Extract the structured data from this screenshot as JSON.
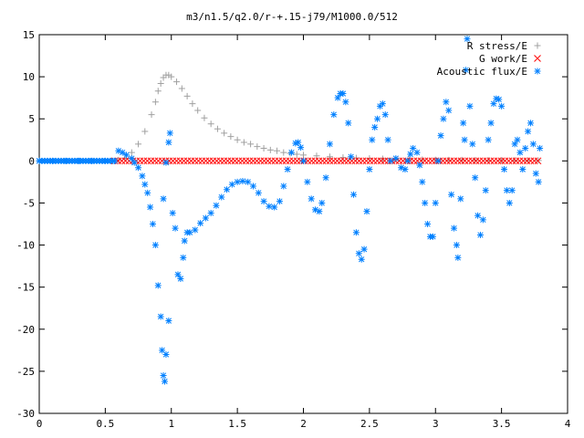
{
  "chart_data": {
    "type": "scatter",
    "title": "m3/n1.5/q2.0/r-+.15-j79/M1000.0/512",
    "xlabel": "",
    "ylabel": "",
    "xlim": [
      0,
      4
    ],
    "ylim": [
      -30,
      15
    ],
    "x_ticks": [
      "0",
      "0.5",
      "1",
      "1.5",
      "2",
      "2.5",
      "3",
      "3.5",
      "4"
    ],
    "y_ticks": [
      "15",
      "10",
      "5",
      "0",
      "-5",
      "-10",
      "-15",
      "-20",
      "-25",
      "-30"
    ],
    "legend_position": "top-right",
    "grid": false,
    "series": [
      {
        "name": "R stress/E",
        "marker": "+",
        "color": "#a0a0a0",
        "points": [
          [
            0.55,
            0.0
          ],
          [
            0.6,
            0.1
          ],
          [
            0.65,
            0.3
          ],
          [
            0.7,
            1.0
          ],
          [
            0.75,
            2.0
          ],
          [
            0.8,
            3.5
          ],
          [
            0.85,
            5.5
          ],
          [
            0.88,
            7.0
          ],
          [
            0.9,
            8.3
          ],
          [
            0.92,
            9.2
          ],
          [
            0.94,
            9.9
          ],
          [
            0.96,
            10.2
          ],
          [
            0.98,
            10.2
          ],
          [
            1.0,
            10.0
          ],
          [
            1.04,
            9.4
          ],
          [
            1.08,
            8.6
          ],
          [
            1.12,
            7.7
          ],
          [
            1.16,
            6.8
          ],
          [
            1.2,
            6.0
          ],
          [
            1.25,
            5.1
          ],
          [
            1.3,
            4.4
          ],
          [
            1.35,
            3.8
          ],
          [
            1.4,
            3.3
          ],
          [
            1.45,
            2.9
          ],
          [
            1.5,
            2.5
          ],
          [
            1.55,
            2.2
          ],
          [
            1.6,
            2.0
          ],
          [
            1.65,
            1.7
          ],
          [
            1.7,
            1.5
          ],
          [
            1.75,
            1.3
          ],
          [
            1.8,
            1.2
          ],
          [
            1.85,
            1.0
          ],
          [
            1.9,
            0.9
          ],
          [
            1.95,
            0.8
          ],
          [
            2.0,
            0.7
          ],
          [
            2.1,
            0.6
          ],
          [
            2.2,
            0.5
          ],
          [
            2.3,
            0.4
          ],
          [
            2.4,
            0.35
          ],
          [
            2.5,
            0.3
          ],
          [
            2.6,
            0.25
          ],
          [
            2.7,
            0.2
          ],
          [
            2.8,
            0.18
          ],
          [
            2.9,
            0.15
          ],
          [
            3.0,
            0.12
          ],
          [
            3.1,
            0.1
          ],
          [
            3.2,
            0.1
          ],
          [
            3.3,
            0.08
          ],
          [
            3.4,
            0.07
          ],
          [
            3.5,
            0.06
          ],
          [
            3.6,
            0.05
          ],
          [
            3.7,
            0.05
          ],
          [
            3.78,
            0.05
          ]
        ]
      },
      {
        "name": "G work/E",
        "marker": "x",
        "color": "#ff0000",
        "x_range": [
          0.57,
          3.79
        ],
        "y_value": 0
      },
      {
        "name": "Acoustic flux/E",
        "marker": "*",
        "color": "#0080ff",
        "points": [
          [
            0.0,
            0
          ],
          [
            0.1,
            0
          ],
          [
            0.2,
            0
          ],
          [
            0.3,
            0
          ],
          [
            0.4,
            0
          ],
          [
            0.5,
            0
          ],
          [
            0.57,
            0
          ],
          [
            0.6,
            1.2
          ],
          [
            0.63,
            1.0
          ],
          [
            0.66,
            0.7
          ],
          [
            0.7,
            0.3
          ],
          [
            0.72,
            -0.2
          ],
          [
            0.75,
            -0.8
          ],
          [
            0.78,
            -1.8
          ],
          [
            0.8,
            -2.8
          ],
          [
            0.82,
            -3.8
          ],
          [
            0.84,
            -5.5
          ],
          [
            0.86,
            -7.5
          ],
          [
            0.88,
            -10.0
          ],
          [
            0.9,
            -14.8
          ],
          [
            0.92,
            -18.5
          ],
          [
            0.93,
            -22.5
          ],
          [
            0.94,
            -25.5
          ],
          [
            0.95,
            -26.2
          ],
          [
            0.96,
            -23.0
          ],
          [
            0.98,
            -19.0
          ],
          [
            0.94,
            -4.5
          ],
          [
            0.96,
            -0.2
          ],
          [
            0.98,
            2.2
          ],
          [
            0.99,
            3.3
          ],
          [
            1.01,
            -6.2
          ],
          [
            1.03,
            -8.0
          ],
          [
            1.05,
            -13.5
          ],
          [
            1.07,
            -14.0
          ],
          [
            1.09,
            -11.5
          ],
          [
            1.1,
            -9.5
          ],
          [
            1.12,
            -8.5
          ],
          [
            1.14,
            -8.5
          ],
          [
            1.18,
            -8.2
          ],
          [
            1.22,
            -7.4
          ],
          [
            1.26,
            -6.8
          ],
          [
            1.3,
            -6.2
          ],
          [
            1.34,
            -5.3
          ],
          [
            1.38,
            -4.3
          ],
          [
            1.42,
            -3.4
          ],
          [
            1.46,
            -2.8
          ],
          [
            1.5,
            -2.5
          ],
          [
            1.54,
            -2.4
          ],
          [
            1.58,
            -2.5
          ],
          [
            1.62,
            -3.0
          ],
          [
            1.66,
            -3.8
          ],
          [
            1.7,
            -4.8
          ],
          [
            1.74,
            -5.4
          ],
          [
            1.78,
            -5.5
          ],
          [
            1.82,
            -4.8
          ],
          [
            1.85,
            -3.0
          ],
          [
            1.88,
            -1.0
          ],
          [
            1.91,
            1.0
          ],
          [
            1.94,
            2.1
          ],
          [
            1.96,
            2.2
          ],
          [
            1.98,
            1.6
          ],
          [
            2.0,
            0.0
          ],
          [
            2.03,
            -2.5
          ],
          [
            2.06,
            -4.5
          ],
          [
            2.09,
            -5.8
          ],
          [
            2.12,
            -6.0
          ],
          [
            2.14,
            -5.0
          ],
          [
            2.17,
            -2.0
          ],
          [
            2.2,
            2.0
          ],
          [
            2.23,
            5.5
          ],
          [
            2.26,
            7.5
          ],
          [
            2.28,
            8.0
          ],
          [
            2.3,
            8.0
          ],
          [
            2.32,
            7.0
          ],
          [
            2.34,
            4.5
          ],
          [
            2.36,
            0.5
          ],
          [
            2.38,
            -4.0
          ],
          [
            2.4,
            -8.5
          ],
          [
            2.42,
            -11.0
          ],
          [
            2.44,
            -11.7
          ],
          [
            2.46,
            -10.5
          ],
          [
            2.48,
            -6.0
          ],
          [
            2.5,
            -1.0
          ],
          [
            2.52,
            2.5
          ],
          [
            2.54,
            4.0
          ],
          [
            2.56,
            5.0
          ],
          [
            2.58,
            6.5
          ],
          [
            2.6,
            6.8
          ],
          [
            2.62,
            5.5
          ],
          [
            2.64,
            2.5
          ],
          [
            2.66,
            0.0
          ],
          [
            2.7,
            0.3
          ],
          [
            2.74,
            -0.8
          ],
          [
            2.77,
            -1.0
          ],
          [
            2.79,
            0.0
          ],
          [
            2.81,
            0.8
          ],
          [
            2.83,
            1.5
          ],
          [
            2.86,
            1.0
          ],
          [
            2.88,
            -0.5
          ],
          [
            2.9,
            -2.5
          ],
          [
            2.92,
            -5.0
          ],
          [
            2.94,
            -7.5
          ],
          [
            2.96,
            -9.0
          ],
          [
            2.98,
            -9.0
          ],
          [
            3.0,
            -5.0
          ],
          [
            3.02,
            0.0
          ],
          [
            3.04,
            3.0
          ],
          [
            3.06,
            5.0
          ],
          [
            3.08,
            7.0
          ],
          [
            3.1,
            6.0
          ],
          [
            3.12,
            -4.0
          ],
          [
            3.14,
            -8.0
          ],
          [
            3.16,
            -10.0
          ],
          [
            3.17,
            -11.5
          ],
          [
            3.19,
            -4.5
          ],
          [
            3.21,
            4.5
          ],
          [
            3.22,
            2.5
          ],
          [
            3.23,
            10.8
          ],
          [
            3.24,
            14.5
          ],
          [
            3.26,
            6.5
          ],
          [
            3.28,
            2.0
          ],
          [
            3.3,
            -2.0
          ],
          [
            3.32,
            -6.5
          ],
          [
            3.34,
            -8.8
          ],
          [
            3.36,
            -7.0
          ],
          [
            3.38,
            -3.5
          ],
          [
            3.4,
            2.5
          ],
          [
            3.42,
            4.5
          ],
          [
            3.44,
            6.8
          ],
          [
            3.46,
            7.4
          ],
          [
            3.48,
            7.3
          ],
          [
            3.5,
            6.5
          ],
          [
            3.52,
            -1.0
          ],
          [
            3.54,
            -3.5
          ],
          [
            3.56,
            -5.0
          ],
          [
            3.58,
            -3.5
          ],
          [
            3.6,
            2.0
          ],
          [
            3.62,
            2.5
          ],
          [
            3.64,
            1.0
          ],
          [
            3.66,
            -1.0
          ],
          [
            3.68,
            1.5
          ],
          [
            3.7,
            3.5
          ],
          [
            3.72,
            4.5
          ],
          [
            3.74,
            2.0
          ],
          [
            3.76,
            -1.5
          ],
          [
            3.78,
            -2.5
          ],
          [
            3.79,
            1.5
          ]
        ]
      }
    ]
  }
}
